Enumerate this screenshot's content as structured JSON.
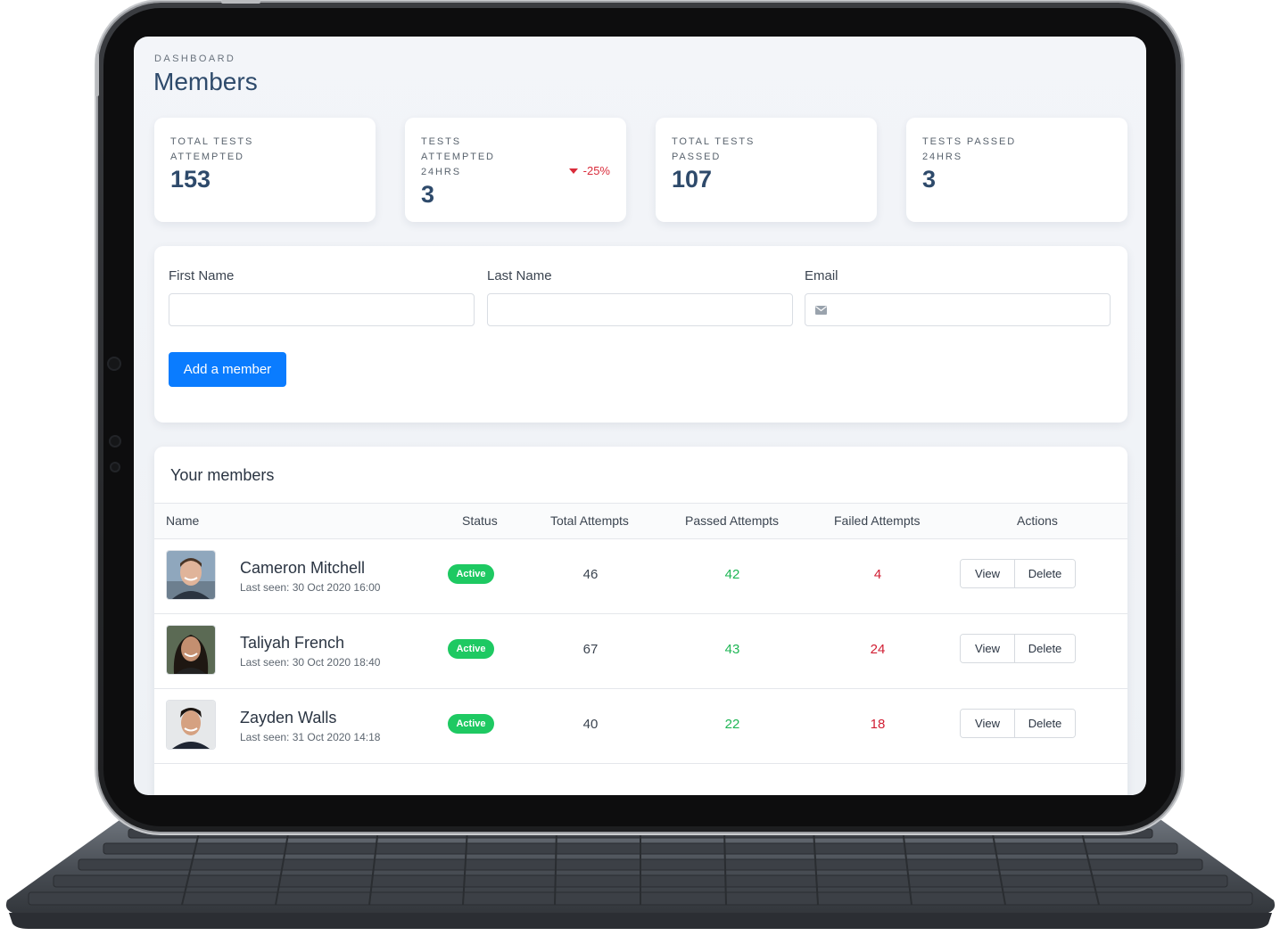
{
  "header": {
    "eyebrow": "DASHBOARD",
    "title": "Members"
  },
  "stats": [
    {
      "label": "TOTAL TESTS ATTEMPTED",
      "value": "153"
    },
    {
      "label": "TESTS ATTEMPTED 24HRS",
      "value": "3",
      "trend": "-25%",
      "trend_direction": "down",
      "trend_color": "#d92b3a"
    },
    {
      "label": "TOTAL TESTS PASSED",
      "value": "107"
    },
    {
      "label": "TESTS PASSED 24HRS",
      "value": "3"
    }
  ],
  "form": {
    "first_name_label": "First Name",
    "first_name_value": "",
    "last_name_label": "Last Name",
    "last_name_value": "",
    "email_label": "Email",
    "email_value": "",
    "email_icon": "mail-icon",
    "submit_label": "Add a member",
    "submit_color": "#0a7cff"
  },
  "members": {
    "title": "Your members",
    "columns": [
      "Name",
      "Status",
      "Total Attempts",
      "Passed Attempts",
      "Failed Attempts",
      "Actions"
    ],
    "rows": [
      {
        "name": "Cameron Mitchell",
        "last_seen": "Last seen: 30 Oct 2020 16:00",
        "status": "Active",
        "total": "46",
        "passed": "42",
        "failed": "4",
        "view_label": "View",
        "delete_label": "Delete"
      },
      {
        "name": "Taliyah French",
        "last_seen": "Last seen: 30 Oct 2020 18:40",
        "status": "Active",
        "total": "67",
        "passed": "43",
        "failed": "24",
        "view_label": "View",
        "delete_label": "Delete"
      },
      {
        "name": "Zayden Walls",
        "last_seen": "Last seen: 31 Oct 2020 14:18",
        "status": "Active",
        "total": "40",
        "passed": "22",
        "failed": "18",
        "view_label": "View",
        "delete_label": "Delete"
      }
    ],
    "status_color": "#1ec962",
    "passed_color": "#1fb655",
    "failed_color": "#d11d32"
  }
}
